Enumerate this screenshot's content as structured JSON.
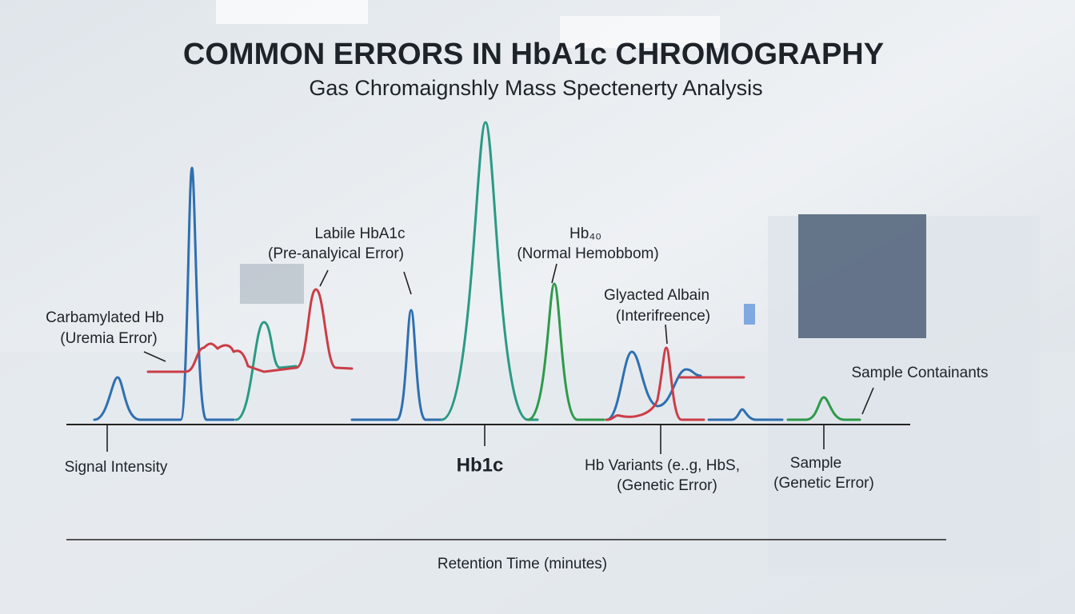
{
  "header": {
    "title": "COMMON ERRORS IN HbA1c CHROMOGRAPHY",
    "subtitle": "Gas Chromaignshly Mass Spectenerty Analysis"
  },
  "labels": [
    {
      "lines": [
        "Carbamylated Hb",
        "(Uremia Error)"
      ]
    },
    {
      "lines": [
        "Labile HbA1c",
        "(Pre-analyical Error)"
      ]
    },
    {
      "lines": [
        "Hb₄₀",
        "(Normal Hemobbom)"
      ]
    },
    {
      "lines": [
        "Glyacted Albain",
        "(Interifreence)"
      ]
    },
    {
      "lines": [
        "Sample Containants"
      ]
    },
    {
      "lines": [
        "Signal Intensity"
      ]
    },
    {
      "lines": [
        "Hb1c"
      ]
    },
    {
      "lines": [
        "Hb Variants (e..g, HbS,",
        "(Genetic Error)"
      ]
    },
    {
      "lines": [
        "Sample",
        "(Genetic Error)"
      ]
    }
  ],
  "axis": {
    "title": "Retention Time (minutes)"
  }
}
